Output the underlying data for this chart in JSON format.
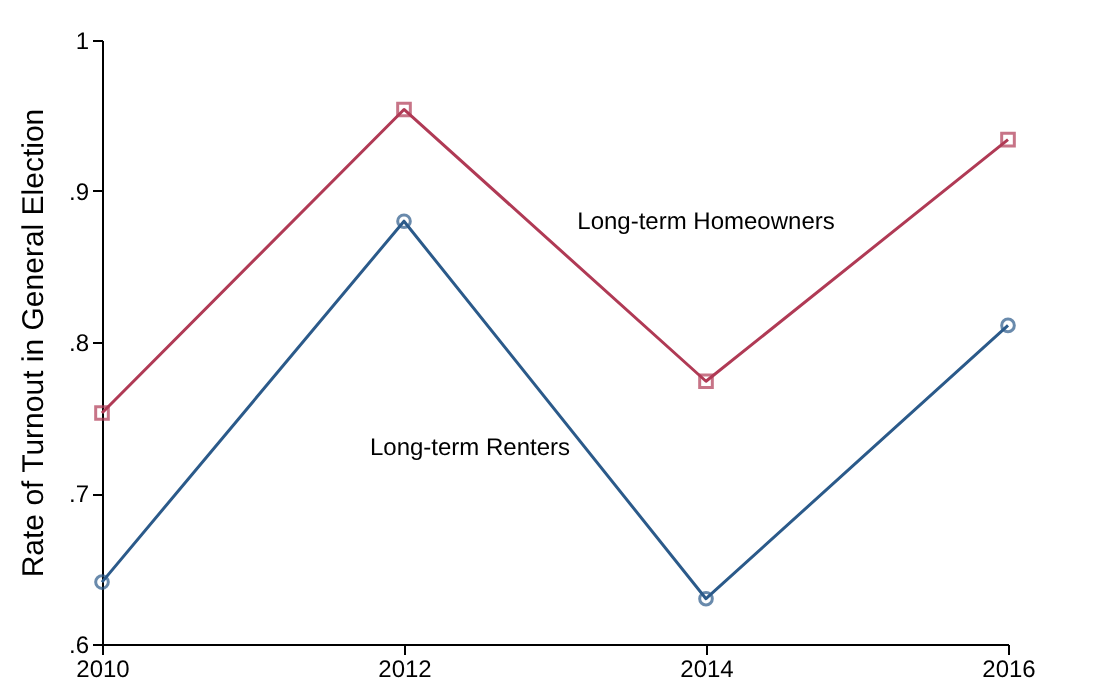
{
  "chart_data": {
    "type": "line",
    "ylabel": "Rate of Turnout in General Election",
    "x": [
      2010,
      2012,
      2014,
      2016
    ],
    "series": [
      {
        "name": "Long-term Homeowners",
        "color": "#b03a55",
        "marker": "square",
        "values": [
          0.753,
          0.954,
          0.774,
          0.934
        ]
      },
      {
        "name": "Long-term Renters",
        "color": "#2b5a8a",
        "marker": "circle",
        "values": [
          0.641,
          0.88,
          0.63,
          0.811
        ]
      }
    ],
    "xlim": [
      2010,
      2016
    ],
    "xticks": [
      2010,
      2012,
      2014,
      2016
    ],
    "ylim": [
      0.6,
      1
    ],
    "yticks": [
      {
        "value": 0.6,
        "label": ".6"
      },
      {
        "value": 0.7,
        "label": ".7"
      },
      {
        "value": 0.8,
        "label": ".8"
      },
      {
        "value": 0.9,
        "label": ".9"
      },
      {
        "value": 1,
        "label": "1"
      }
    ],
    "grid": false,
    "line_style": "solid"
  }
}
